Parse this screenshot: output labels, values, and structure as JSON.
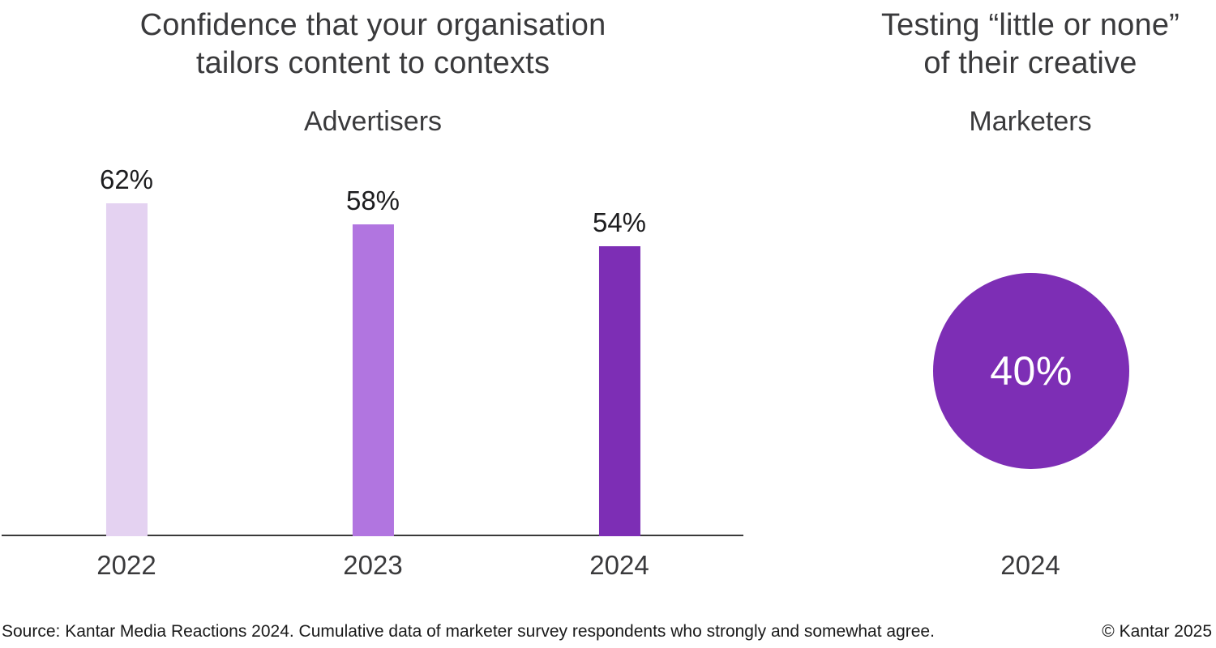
{
  "page": {
    "background": "#FFFFFF"
  },
  "chart_data": [
    {
      "type": "bar",
      "title": "Confidence that your organisation tailors content to contexts",
      "title_lines": [
        "Confidence that your organisation",
        "tailors content to contexts"
      ],
      "subtitle": "Advertisers",
      "categories": [
        "2022",
        "2023",
        "2024"
      ],
      "values": [
        62,
        58,
        54
      ],
      "value_labels": [
        "62%",
        "58%",
        "54%"
      ],
      "bar_colors": [
        "#E4D2F1",
        "#B175E0",
        "#7D2EB5"
      ],
      "xlabel": "",
      "ylabel": "",
      "ylim": [
        0,
        100
      ],
      "grid": false,
      "legend": false
    },
    {
      "type": "bubble",
      "title": "Testing “little or none” of their creative",
      "title_lines": [
        "Testing “little or none”",
        "of their creative"
      ],
      "subtitle": "Marketers",
      "categories": [
        "2024"
      ],
      "values": [
        40
      ],
      "value_labels": [
        "40%"
      ],
      "bubble_color": "#7D2EB5",
      "value_text_color": "#FFFFFF",
      "grid": false,
      "legend": false
    }
  ],
  "footer": {
    "source": "Source: Kantar Media Reactions 2024. Cumulative data of marketer survey respondents who strongly and somewhat agree.",
    "copyright": "© Kantar 2025"
  },
  "colors": {
    "title_text": "#3A3A3C",
    "value_label_text": "#1D1D1F",
    "axis_line": "#3A3A3A"
  }
}
